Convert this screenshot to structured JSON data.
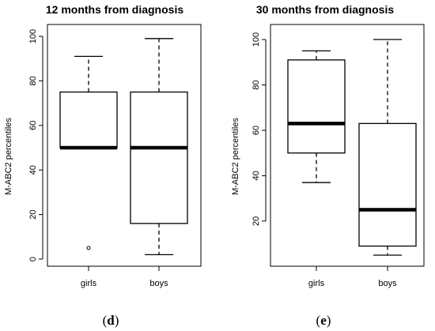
{
  "chart_data": [
    {
      "type": "boxplot",
      "title": "12 months from diagnosis",
      "ylabel": "M-ABC2 percentiles",
      "xlabel": "",
      "ylim": [
        0,
        100
      ],
      "yticks": [
        0,
        20,
        40,
        60,
        80,
        100
      ],
      "categories": [
        "girls",
        "boys"
      ],
      "boxes": [
        {
          "label": "girls",
          "whisker_low": 50,
          "q1": 50,
          "median": 50,
          "q3": 75,
          "whisker_high": 91,
          "outliers": [
            5
          ]
        },
        {
          "label": "boys",
          "whisker_low": 2,
          "q1": 16,
          "median": 50,
          "q3": 75,
          "whisker_high": 99,
          "outliers": []
        }
      ],
      "panel_label": {
        "open": "(",
        "letter": "d",
        "close": ")"
      }
    },
    {
      "type": "boxplot",
      "title": "30 months from diagnosis",
      "ylabel": "M-ABC2 percentiles",
      "xlabel": "",
      "ylim": [
        5,
        100
      ],
      "yticks": [
        20,
        40,
        60,
        80,
        100
      ],
      "categories": [
        "girls",
        "boys"
      ],
      "boxes": [
        {
          "label": "girls",
          "whisker_low": 37,
          "q1": 50,
          "median": 63,
          "q3": 91,
          "whisker_high": 95,
          "outliers": []
        },
        {
          "label": "boys",
          "whisker_low": 5,
          "q1": 9,
          "median": 25,
          "q3": 63,
          "whisker_high": 100,
          "outliers": []
        }
      ],
      "panel_label": {
        "open": "(",
        "letter": "e",
        "close": ")"
      }
    }
  ]
}
